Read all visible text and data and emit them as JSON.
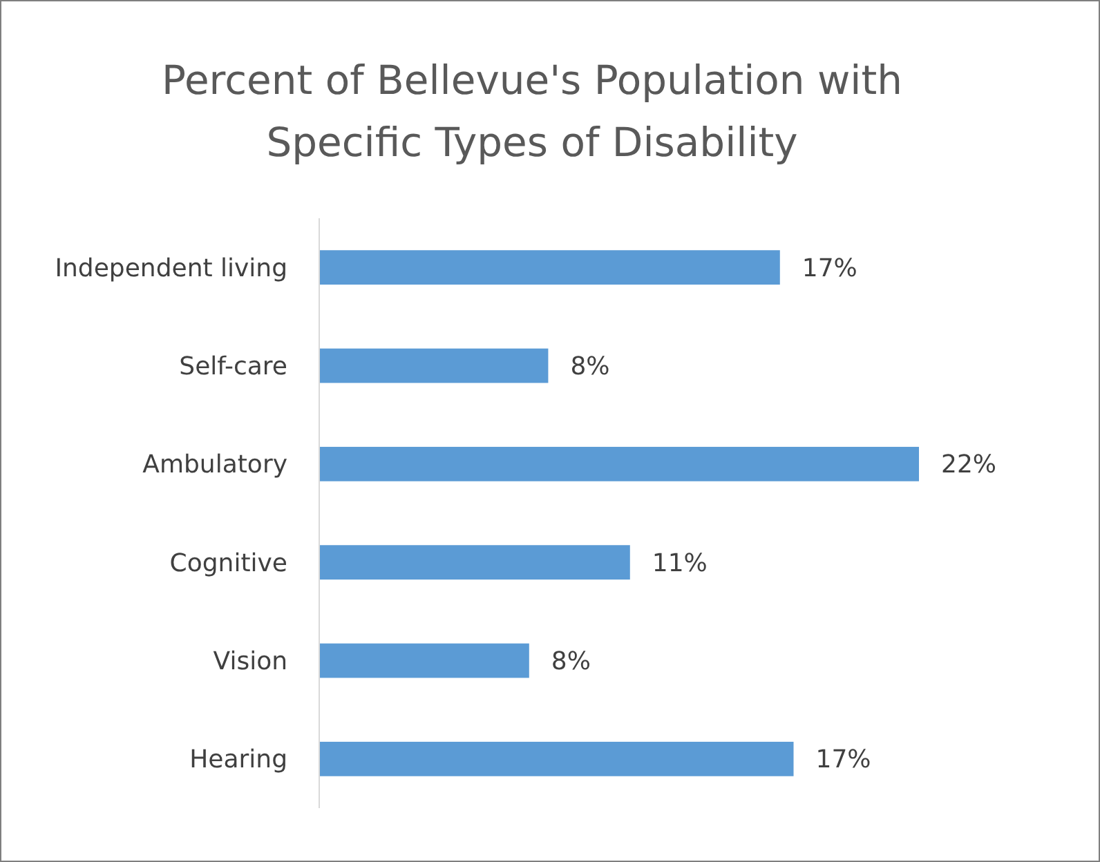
{
  "chart_data": {
    "type": "bar",
    "orientation": "horizontal",
    "title": "Percent of Bellevue's Population with Specific Types of Disability",
    "categories": [
      "Independent living",
      "Self-care",
      "Ambulatory",
      "Cognitive",
      "Vision",
      "Hearing"
    ],
    "values": [
      16.9,
      8.4,
      22,
      11.4,
      7.7,
      17.4
    ],
    "value_labels": [
      "17%",
      "8%",
      "22%",
      "11%",
      "8%",
      "17%"
    ],
    "color": "#5b9bd5"
  }
}
